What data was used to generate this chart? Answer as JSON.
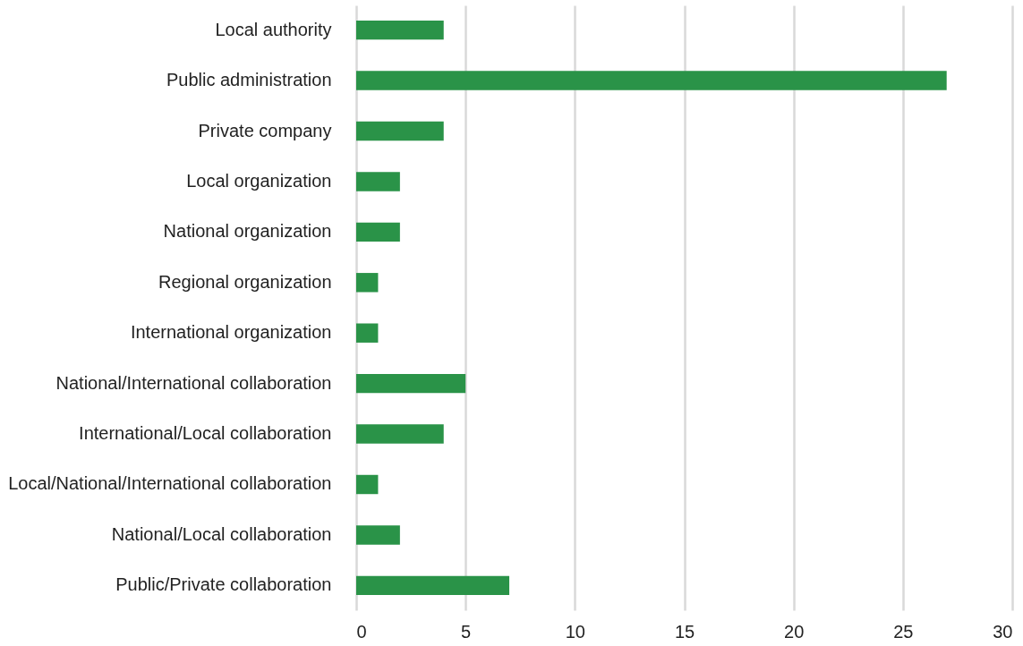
{
  "chart_data": {
    "type": "bar",
    "orientation": "horizontal",
    "categories": [
      "Local authority",
      "Public administration",
      "Private company",
      "Local organization",
      "National organization",
      "Regional organization",
      "International organization",
      "National/International collaboration",
      "International/Local collaboration",
      "Local/National/International collaboration",
      "National/Local collaboration",
      "Public/Private collaboration"
    ],
    "values": [
      4,
      27,
      4,
      2,
      2,
      1,
      1,
      5,
      4,
      1,
      2,
      7
    ],
    "color": "#2a9348",
    "xlim": [
      0,
      30
    ],
    "xticks": [
      0,
      5,
      10,
      15,
      20,
      25,
      30
    ],
    "grid": "x"
  }
}
